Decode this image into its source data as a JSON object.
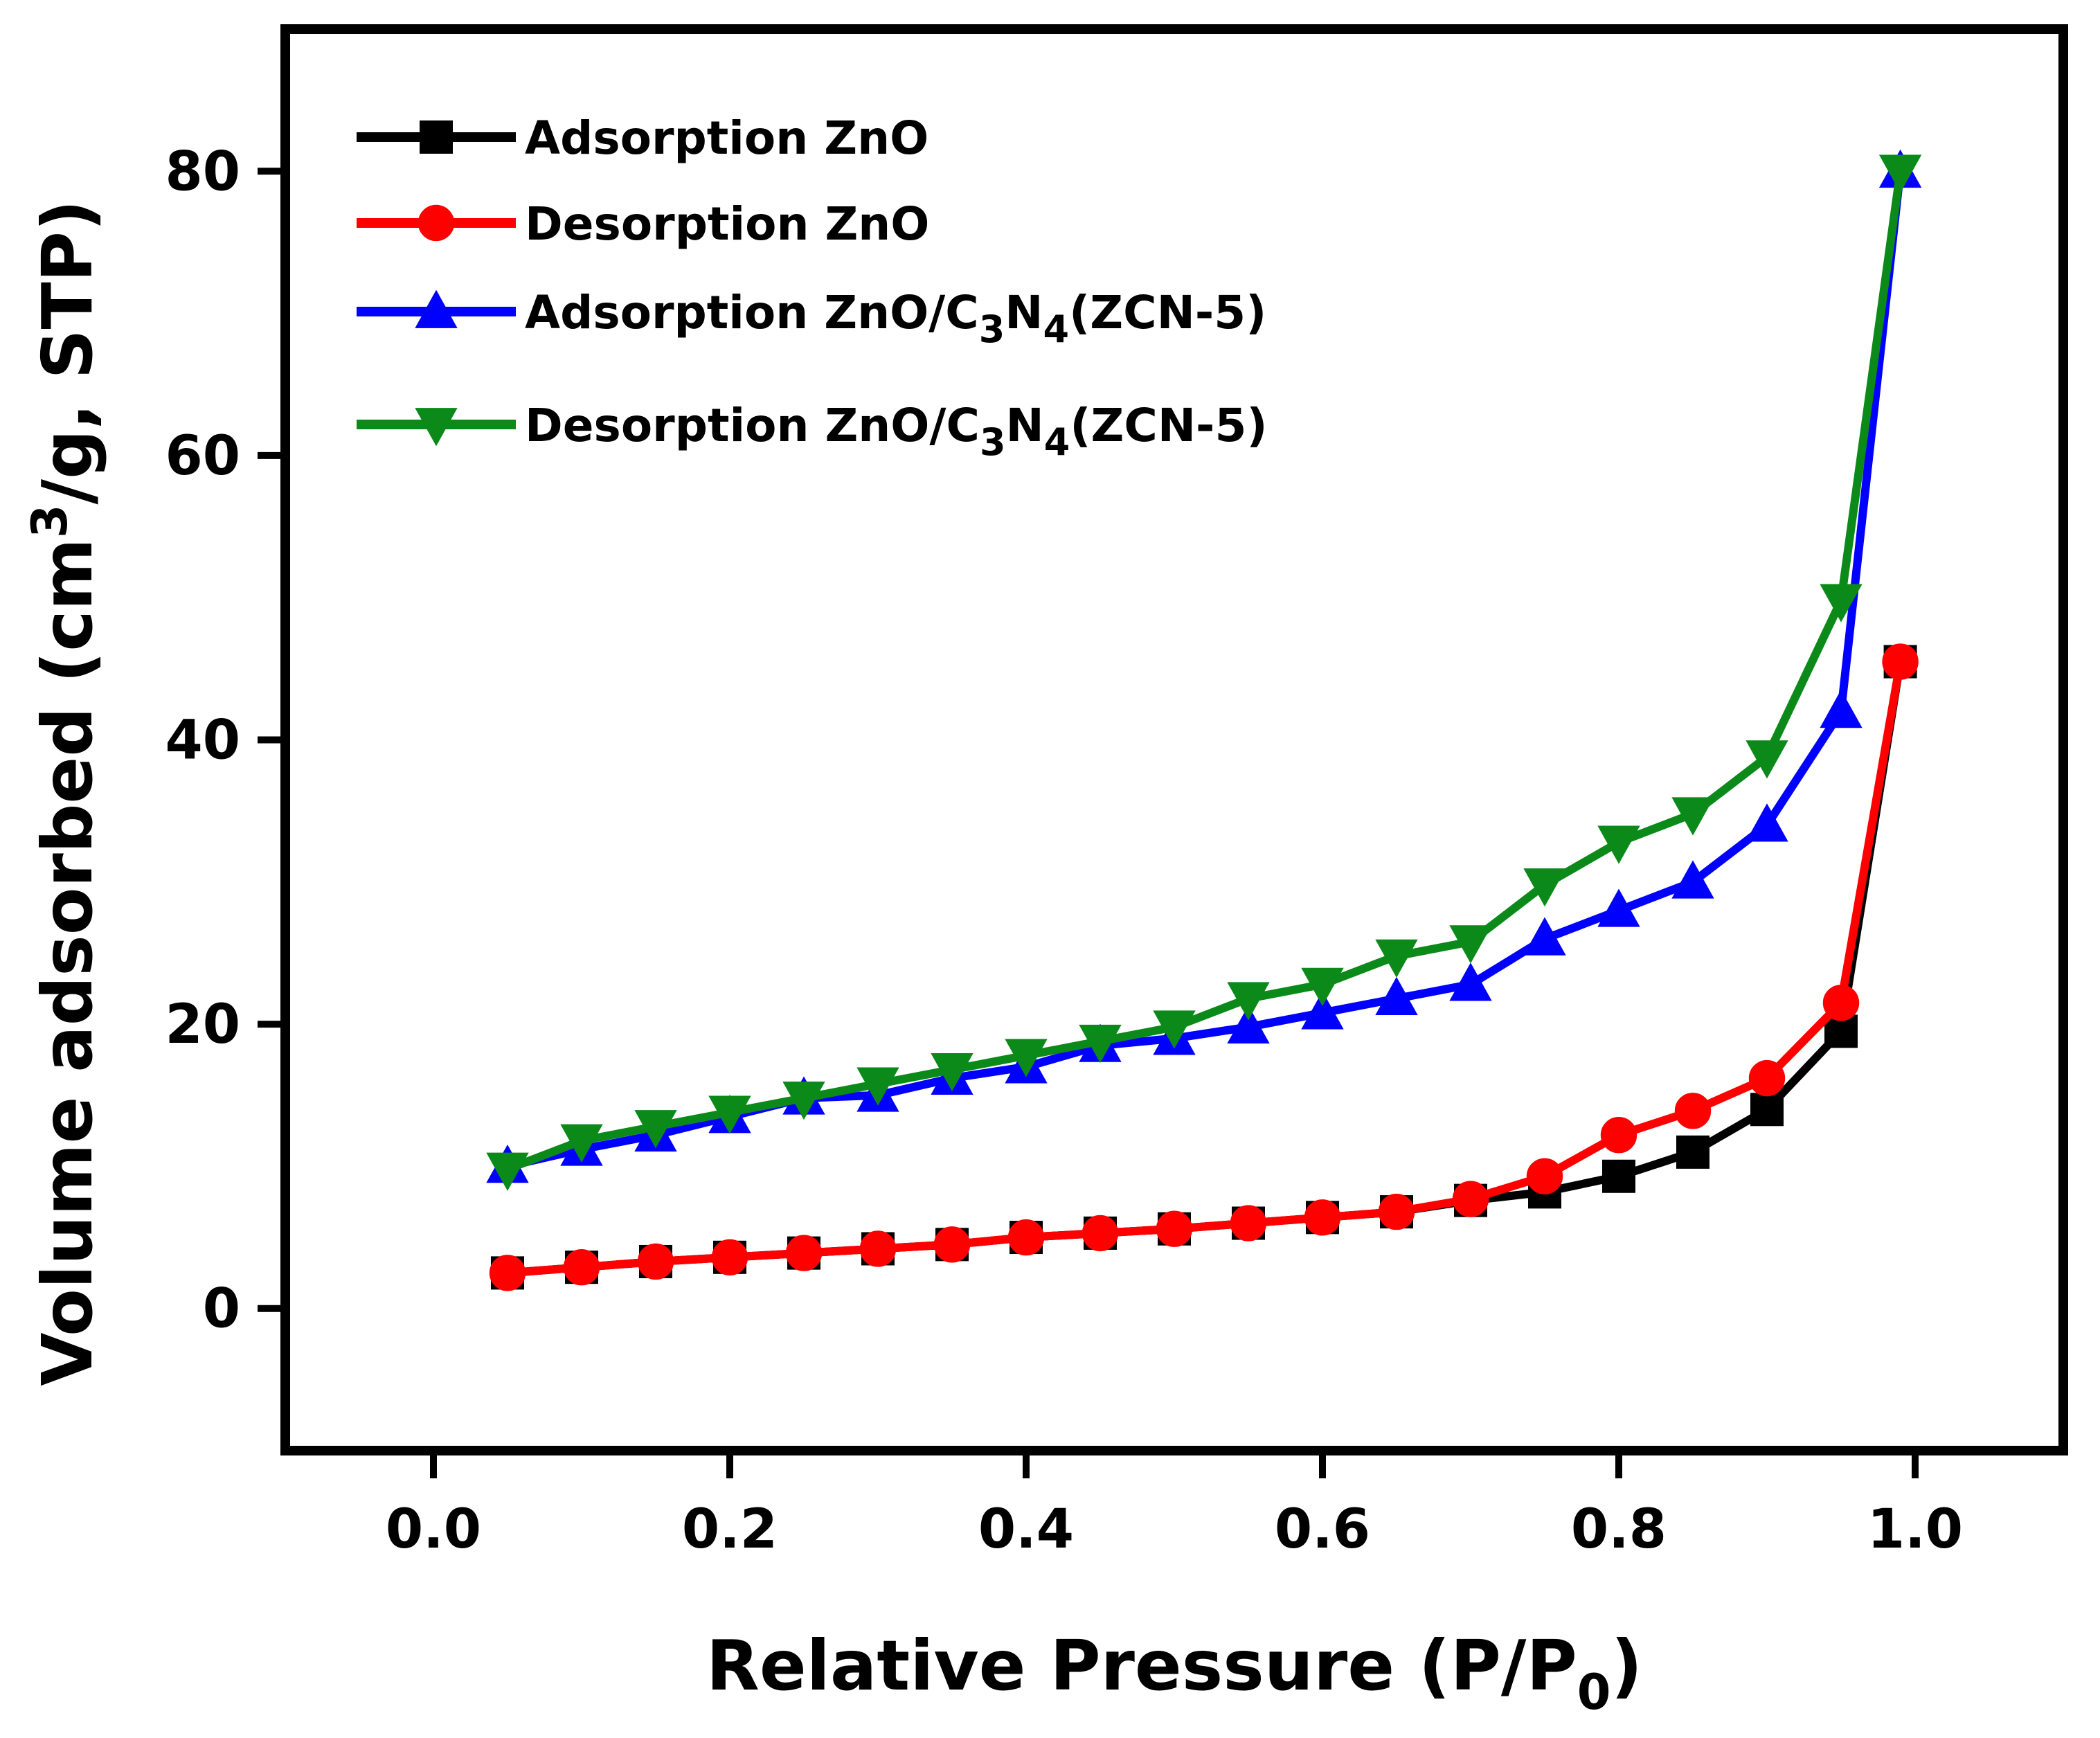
{
  "chart_data": {
    "type": "line",
    "xlabel": "Relative Pressure (P/P0)",
    "xlabel_parts": {
      "main": "Relative Pressure (P/P",
      "sub": "0",
      "close": ")"
    },
    "ylabel": "Volume adsorbed (cm3/g, STP)",
    "ylabel_parts": {
      "pre": "Volume adsorbed (cm",
      "sup": "3",
      "post": "/g, STP)"
    },
    "xlim": [
      -0.1,
      1.1
    ],
    "ylim": [
      -10,
      90
    ],
    "x_ticks": [
      0.0,
      0.2,
      0.4,
      0.6,
      0.8,
      1.0
    ],
    "x_tick_labels": [
      "0.0",
      "0.2",
      "0.4",
      "0.6",
      "0.8",
      "1.0"
    ],
    "y_ticks": [
      0,
      20,
      40,
      60,
      80
    ],
    "y_tick_labels": [
      "0",
      "20",
      "40",
      "60",
      "80"
    ],
    "legend_position": "top-left",
    "series": [
      {
        "name": "Adsorption ZnO",
        "label_parts": [
          "Adsorption ZnO"
        ],
        "color": "#000000",
        "marker": "square",
        "x": [
          0.05,
          0.1,
          0.15,
          0.2,
          0.25,
          0.3,
          0.35,
          0.4,
          0.45,
          0.5,
          0.55,
          0.6,
          0.65,
          0.7,
          0.75,
          0.8,
          0.85,
          0.9,
          0.95,
          0.99
        ],
        "y": [
          2.5,
          2.9,
          3.3,
          3.6,
          3.9,
          4.2,
          4.5,
          5.0,
          5.3,
          5.6,
          6.0,
          6.4,
          6.8,
          7.6,
          8.2,
          9.3,
          11.0,
          14.0,
          19.5,
          45.5
        ]
      },
      {
        "name": "Desorption ZnO",
        "label_parts": [
          "Desorption ZnO"
        ],
        "color": "#ff0000",
        "marker": "circle",
        "x": [
          0.05,
          0.1,
          0.15,
          0.2,
          0.25,
          0.3,
          0.35,
          0.4,
          0.45,
          0.5,
          0.55,
          0.6,
          0.65,
          0.7,
          0.75,
          0.8,
          0.85,
          0.9,
          0.95,
          0.99
        ],
        "y": [
          2.5,
          2.9,
          3.3,
          3.6,
          3.9,
          4.2,
          4.5,
          5.0,
          5.3,
          5.6,
          6.0,
          6.4,
          6.8,
          7.7,
          9.3,
          12.2,
          13.9,
          16.2,
          21.5,
          45.5
        ]
      },
      {
        "name": "Adsorption ZnO/C3N4(ZCN-5)",
        "label_parts": [
          "Adsorption ZnO/C",
          "3",
          "N",
          "4",
          "(ZCN-5)"
        ],
        "color": "#0000ff",
        "marker": "triangle-up",
        "x": [
          0.05,
          0.1,
          0.15,
          0.2,
          0.25,
          0.3,
          0.35,
          0.4,
          0.45,
          0.5,
          0.55,
          0.6,
          0.65,
          0.7,
          0.75,
          0.8,
          0.85,
          0.9,
          0.95,
          0.99
        ],
        "y": [
          10.0,
          11.2,
          12.2,
          13.5,
          14.8,
          15.0,
          16.2,
          17.0,
          18.5,
          19.0,
          19.8,
          20.8,
          21.8,
          22.8,
          26.0,
          28.0,
          30.0,
          34.0,
          42.0,
          80.0
        ]
      },
      {
        "name": "Desorption ZnO/C3N4(ZCN-5)",
        "label_parts": [
          "Desorption ZnO/C",
          "3",
          "N",
          "4",
          "(ZCN-5)"
        ],
        "color": "#0b8a1a",
        "marker": "triangle-down",
        "x": [
          0.05,
          0.1,
          0.15,
          0.2,
          0.25,
          0.3,
          0.35,
          0.4,
          0.45,
          0.5,
          0.55,
          0.6,
          0.65,
          0.7,
          0.75,
          0.8,
          0.85,
          0.9,
          0.95,
          0.99
        ],
        "y": [
          9.8,
          11.8,
          12.8,
          13.8,
          14.8,
          15.8,
          16.8,
          17.8,
          18.8,
          19.8,
          21.8,
          22.8,
          24.8,
          25.8,
          29.8,
          32.8,
          34.8,
          38.8,
          49.8,
          80.0
        ]
      }
    ]
  }
}
